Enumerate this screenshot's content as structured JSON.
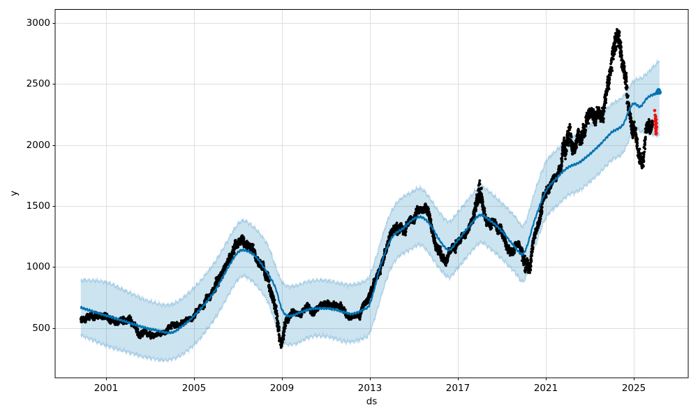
{
  "chart_data": {
    "type": "scatter",
    "description": "Prophet-style time-series forecast plot: black dots = observed history, dark-blue line = forecast yhat, light-blue region = uncertainty interval extending past the history, red dots = most recent observed points at the right edge",
    "title": "",
    "xlabel": "ds",
    "ylabel": "y",
    "grid": true,
    "legend_position": "none",
    "x_axis": {
      "tick_values": [
        2001,
        2005,
        2009,
        2013,
        2017,
        2021,
        2025
      ],
      "tick_labels": [
        "2001",
        "2005",
        "2009",
        "2013",
        "2017",
        "2021",
        "2025"
      ],
      "lim": [
        1998.683,
        2027.476
      ]
    },
    "y_axis": {
      "tick_values": [
        500,
        1000,
        1500,
        2000,
        2500,
        3000
      ],
      "tick_labels": [
        "500",
        "1000",
        "1500",
        "2000",
        "2500",
        "3000"
      ],
      "lim": [
        91,
        3112
      ]
    },
    "colors": {
      "background": "#ffffff",
      "grid": "#dedede",
      "spine": "#000000",
      "tick_text": "#000000",
      "observed_points": "#000000",
      "forecast_line": "#0072B2",
      "uncertainty_band_fill": "rgba(0,114,178,0.20)",
      "uncertainty_band_edge": "rgba(0,114,178,0.24)",
      "recent_points": "#ee1111"
    },
    "series": {
      "forecast_line": {
        "x": [
          1999.85,
          2000.3,
          2000.8,
          2001.3,
          2002.0,
          2002.7,
          2003.3,
          2004.0,
          2004.5,
          2005.0,
          2005.6,
          2006.0,
          2006.5,
          2007.0,
          2007.35,
          2007.8,
          2008.3,
          2008.7,
          2009.0,
          2009.3,
          2009.8,
          2010.3,
          2010.8,
          2011.3,
          2011.8,
          2012.2,
          2012.7,
          2013.0,
          2013.5,
          2014.0,
          2014.5,
          2015.0,
          2015.4,
          2015.8,
          2016.2,
          2016.6,
          2017.0,
          2017.5,
          2018.0,
          2018.4,
          2019.0,
          2019.5,
          2020.0,
          2020.5,
          2021.0,
          2021.5,
          2022.0,
          2022.5,
          2023.0,
          2023.5,
          2024.0,
          2024.5,
          2024.8,
          2025.0,
          2025.3,
          2025.6,
          2025.9,
          2026.17
        ],
        "y": [
          668,
          640,
          612,
          585,
          545,
          505,
          480,
          462,
          520,
          598,
          720,
          820,
          980,
          1120,
          1135,
          1085,
          960,
          830,
          650,
          598,
          625,
          655,
          660,
          655,
          630,
          615,
          650,
          700,
          1020,
          1240,
          1315,
          1395,
          1405,
          1330,
          1210,
          1140,
          1220,
          1330,
          1425,
          1390,
          1295,
          1185,
          1115,
          1390,
          1620,
          1730,
          1815,
          1855,
          1925,
          2010,
          2105,
          2165,
          2290,
          2340,
          2315,
          2385,
          2415,
          2438
        ]
      },
      "uncertainty_band": {
        "x": [
          1999.85,
          2001.0,
          2002.0,
          2003.0,
          2004.0,
          2005.0,
          2006.0,
          2007.0,
          2007.4,
          2008.3,
          2009.0,
          2009.5,
          2010.3,
          2011.0,
          2012.0,
          2012.7,
          2013.0,
          2014.0,
          2015.0,
          2015.4,
          2016.2,
          2016.6,
          2017.0,
          2018.0,
          2018.4,
          2019.0,
          2019.6,
          2020.0,
          2020.5,
          2021.0,
          2021.5,
          2022.0,
          2022.5,
          2023.0,
          2023.5,
          2024.0,
          2024.5,
          2025.0,
          2025.4,
          2025.9,
          2026.17
        ],
        "lower": [
          440,
          355,
          300,
          252,
          242,
          360,
          590,
          895,
          915,
          730,
          400,
          365,
          425,
          430,
          385,
          415,
          465,
          1005,
          1160,
          1170,
          980,
          915,
          990,
          1195,
          1160,
          1065,
          955,
          885,
          1160,
          1400,
          1500,
          1585,
          1625,
          1695,
          1780,
          1875,
          1935,
          2115,
          2105,
          2085,
          2072
        ],
        "upper": [
          895,
          875,
          795,
          718,
          695,
          830,
          1055,
          1355,
          1370,
          1195,
          880,
          845,
          885,
          890,
          855,
          880,
          935,
          1465,
          1625,
          1635,
          1440,
          1375,
          1450,
          1655,
          1620,
          1525,
          1415,
          1345,
          1620,
          1860,
          1960,
          2045,
          2085,
          2155,
          2240,
          2335,
          2395,
          2525,
          2555,
          2645,
          2692
        ]
      },
      "observed_scatter_profile": {
        "note": "daily observed points rendered as cloud: mean path and half-width of cloud, read from plot",
        "points_per_year": 260,
        "x": [
          1999.85,
          2000.2,
          2000.7,
          2001.1,
          2001.5,
          2002.0,
          2002.5,
          2003.0,
          2003.5,
          2004.0,
          2004.5,
          2005.0,
          2005.5,
          2006.0,
          2006.4,
          2006.8,
          2007.2,
          2007.6,
          2008.0,
          2008.4,
          2008.75,
          2008.95,
          2009.15,
          2009.5,
          2010.0,
          2010.5,
          2011.0,
          2011.5,
          2012.0,
          2012.5,
          2013.0,
          2013.4,
          2013.8,
          2014.2,
          2014.6,
          2015.0,
          2015.35,
          2015.7,
          2016.1,
          2016.45,
          2016.8,
          2017.2,
          2017.6,
          2017.98,
          2018.25,
          2018.6,
          2019.0,
          2019.4,
          2019.8,
          2020.1,
          2020.4,
          2020.7,
          2021.0,
          2021.3,
          2021.6,
          2021.95,
          2022.25,
          2022.6,
          2022.95,
          2023.3,
          2023.65,
          2024.0,
          2024.3,
          2024.6,
          2024.9,
          2025.15,
          2025.4,
          2025.6,
          2025.85
        ],
        "mean": [
          575,
          605,
          600,
          585,
          560,
          545,
          495,
          468,
          470,
          495,
          545,
          615,
          705,
          855,
          1020,
          1090,
          1140,
          1130,
          1030,
          890,
          640,
          400,
          520,
          640,
          672,
          660,
          680,
          645,
          605,
          645,
          755,
          965,
          1160,
          1300,
          1290,
          1390,
          1510,
          1390,
          1100,
          990,
          1130,
          1260,
          1355,
          1580,
          1420,
          1360,
          1255,
          1185,
          1140,
          1000,
          1180,
          1370,
          1590,
          1720,
          1790,
          2150,
          1980,
          2070,
          2160,
          2210,
          2340,
          2560,
          2750,
          2440,
          2260,
          2080,
          1890,
          2040,
          2130
        ],
        "halfwidth": [
          60,
          55,
          55,
          55,
          50,
          55,
          55,
          45,
          42,
          45,
          45,
          40,
          50,
          75,
          85,
          85,
          85,
          85,
          85,
          85,
          130,
          75,
          75,
          55,
          52,
          52,
          52,
          55,
          50,
          50,
          60,
          80,
          75,
          90,
          75,
          80,
          80,
          95,
          95,
          80,
          75,
          65,
          70,
          200,
          95,
          85,
          85,
          75,
          75,
          170,
          90,
          95,
          95,
          80,
          90,
          230,
          130,
          150,
          150,
          130,
          160,
          190,
          200,
          190,
          160,
          150,
          170,
          130,
          110
        ]
      },
      "recent_observed_red": {
        "x": [
          2025.95,
          2025.97,
          2026.0,
          2025.98,
          2026.02,
          2025.96,
          2026.0,
          2026.03,
          2025.98,
          2026.01,
          2026.04,
          2025.99,
          2026.02,
          2026.0,
          2026.03,
          2026.01
        ],
        "y": [
          2283,
          2245,
          2232,
          2218,
          2208,
          2196,
          2188,
          2178,
          2166,
          2155,
          2147,
          2138,
          2126,
          2112,
          2098,
          2090
        ]
      },
      "forecast_end_markers": {
        "x": [
          2026.06,
          2026.1,
          2026.13,
          2026.16,
          2026.17
        ],
        "y": [
          2428,
          2442,
          2450,
          2438,
          2430
        ]
      }
    }
  }
}
